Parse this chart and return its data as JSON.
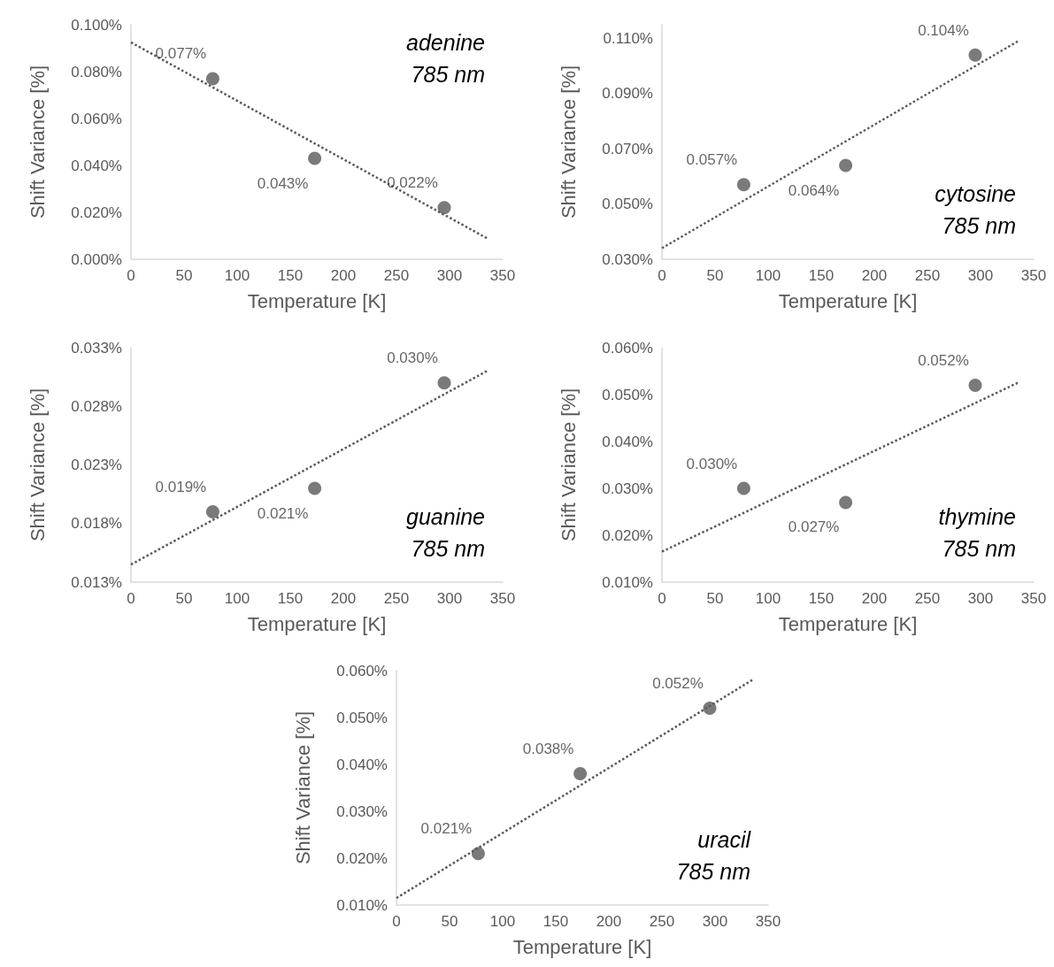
{
  "chart_data": [
    {
      "type": "scatter",
      "xlabel": "Temperature [K]",
      "ylabel": "Shift Variance [%]",
      "annotations": [
        "adenine\n785 nm"
      ],
      "xlim": [
        0,
        350
      ],
      "xticks": [
        0,
        50,
        100,
        150,
        200,
        250,
        300,
        350
      ],
      "ylim": [
        0,
        0.1
      ],
      "yticks": [
        {
          "value": 0,
          "label": "0.000%"
        },
        {
          "value": 0.02,
          "label": "0.020%"
        },
        {
          "value": 0.04,
          "label": "0.040%"
        },
        {
          "value": 0.06,
          "label": "0.060%"
        },
        {
          "value": 0.08,
          "label": "0.080%"
        },
        {
          "value": 0.1,
          "label": "0.100%"
        }
      ],
      "series": [
        {
          "color": "#595959",
          "marker": "circle",
          "x": [
            77,
            173,
            295
          ],
          "values": [
            0.077,
            0.043,
            0.022
          ],
          "value_labels": [
            "0.077%",
            "0.043%",
            "0.022%"
          ]
        },
        {
          "type": "line",
          "color": "#595959",
          "line_style": "dotted",
          "x": [
            0,
            335
          ],
          "values": [
            0.0925,
            0.009
          ]
        }
      ]
    },
    {
      "type": "scatter",
      "xlabel": "Temperature [K]",
      "ylabel": "Shift Variance [%]",
      "annotations": [
        "cytosine\n785 nm"
      ],
      "xlim": [
        0,
        350
      ],
      "xticks": [
        0,
        50,
        100,
        150,
        200,
        250,
        300,
        350
      ],
      "ylim": [
        0.03,
        0.115
      ],
      "yticks": [
        {
          "value": 0.03,
          "label": "0.030%"
        },
        {
          "value": 0.05,
          "label": "0.050%"
        },
        {
          "value": 0.07,
          "label": "0.070%"
        },
        {
          "value": 0.09,
          "label": "0.090%"
        },
        {
          "value": 0.11,
          "label": "0.110%"
        }
      ],
      "series": [
        {
          "color": "#595959",
          "marker": "circle",
          "x": [
            77,
            173,
            295
          ],
          "values": [
            0.057,
            0.064,
            0.104
          ],
          "value_labels": [
            "0.057%",
            "0.064%",
            "0.104%"
          ]
        },
        {
          "type": "line",
          "color": "#595959",
          "line_style": "dotted",
          "x": [
            0,
            335
          ],
          "values": [
            0.034,
            0.109
          ]
        }
      ]
    },
    {
      "type": "scatter",
      "xlabel": "Temperature [K]",
      "ylabel": "Shift Variance [%]",
      "annotations": [
        "guanine\n785 nm"
      ],
      "xlim": [
        0,
        350
      ],
      "xticks": [
        0,
        50,
        100,
        150,
        200,
        250,
        300,
        350
      ],
      "ylim": [
        0.013,
        0.033
      ],
      "yticks": [
        {
          "value": 0.013,
          "label": "0.013%"
        },
        {
          "value": 0.018,
          "label": "0.018%"
        },
        {
          "value": 0.023,
          "label": "0.023%"
        },
        {
          "value": 0.028,
          "label": "0.028%"
        },
        {
          "value": 0.033,
          "label": "0.033%"
        }
      ],
      "series": [
        {
          "color": "#595959",
          "marker": "circle",
          "x": [
            77,
            173,
            295
          ],
          "values": [
            0.019,
            0.021,
            0.03
          ],
          "value_labels": [
            "0.019%",
            "0.021%",
            "0.030%"
          ]
        },
        {
          "type": "line",
          "color": "#595959",
          "line_style": "dotted",
          "x": [
            0,
            335
          ],
          "values": [
            0.0145,
            0.031
          ]
        }
      ]
    },
    {
      "type": "scatter",
      "xlabel": "Temperature [K]",
      "ylabel": "Shift Variance [%]",
      "annotations": [
        "thymine\n785 nm"
      ],
      "xlim": [
        0,
        350
      ],
      "xticks": [
        0,
        50,
        100,
        150,
        200,
        250,
        300,
        350
      ],
      "ylim": [
        0.01,
        0.06
      ],
      "yticks": [
        {
          "value": 0.01,
          "label": "0.010%"
        },
        {
          "value": 0.02,
          "label": "0.020%"
        },
        {
          "value": 0.03,
          "label": "0.030%"
        },
        {
          "value": 0.04,
          "label": "0.040%"
        },
        {
          "value": 0.05,
          "label": "0.050%"
        },
        {
          "value": 0.06,
          "label": "0.060%"
        }
      ],
      "series": [
        {
          "color": "#595959",
          "marker": "circle",
          "x": [
            77,
            173,
            295
          ],
          "values": [
            0.03,
            0.027,
            0.052
          ],
          "value_labels": [
            "0.030%",
            "0.027%",
            "0.052%"
          ]
        },
        {
          "type": "line",
          "color": "#595959",
          "line_style": "dotted",
          "x": [
            0,
            335
          ],
          "values": [
            0.0165,
            0.0525
          ]
        }
      ]
    },
    {
      "type": "scatter",
      "xlabel": "Temperature [K]",
      "ylabel": "Shift Variance [%]",
      "annotations": [
        "uracil\n785 nm"
      ],
      "xlim": [
        0,
        350
      ],
      "xticks": [
        0,
        50,
        100,
        150,
        200,
        250,
        300,
        350
      ],
      "ylim": [
        0.01,
        0.06
      ],
      "yticks": [
        {
          "value": 0.01,
          "label": "0.010%"
        },
        {
          "value": 0.02,
          "label": "0.020%"
        },
        {
          "value": 0.03,
          "label": "0.030%"
        },
        {
          "value": 0.04,
          "label": "0.040%"
        },
        {
          "value": 0.05,
          "label": "0.050%"
        },
        {
          "value": 0.06,
          "label": "0.060%"
        }
      ],
      "series": [
        {
          "color": "#595959",
          "marker": "circle",
          "x": [
            77,
            173,
            295
          ],
          "values": [
            0.021,
            0.038,
            0.052
          ],
          "value_labels": [
            "0.021%",
            "0.038%",
            "0.052%"
          ]
        },
        {
          "type": "line",
          "color": "#595959",
          "line_style": "dotted",
          "x": [
            0,
            335
          ],
          "values": [
            0.0115,
            0.058
          ]
        }
      ]
    }
  ]
}
